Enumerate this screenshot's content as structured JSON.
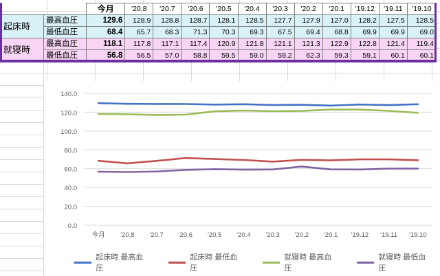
{
  "table": {
    "headers": [
      "今月",
      "'20.8",
      "'20.7",
      "'20.6",
      "'20.5",
      "'20.4",
      "'20.3",
      "'20.2",
      "'20.1",
      "'19.12",
      "'19.11",
      "'19.10"
    ],
    "groups": [
      {
        "label": "起床時",
        "rows": [
          {
            "label": "最高血圧",
            "values": [
              "129.6",
              "128.9",
              "128.8",
              "128.7",
              "128.1",
              "128.5",
              "127.7",
              "127.9",
              "127.0",
              "128.2",
              "127.5",
              "128.5"
            ]
          },
          {
            "label": "最低血圧",
            "values": [
              "68.4",
              "65.7",
              "68.3",
              "71.3",
              "70.3",
              "69.3",
              "67.5",
              "69.4",
              "68.8",
              "69.9",
              "69.9",
              "69.0"
            ]
          }
        ]
      },
      {
        "label": "就寝時",
        "rows": [
          {
            "label": "最高血圧",
            "values": [
              "118.1",
              "117.8",
              "117.1",
              "117.4",
              "120.9",
              "121.8",
              "121.1",
              "121.3",
              "122.9",
              "122.8",
              "121.4",
              "119.4"
            ]
          },
          {
            "label": "最低血圧",
            "values": [
              "56.8",
              "56.5",
              "57.0",
              "58.8",
              "59.5",
              "59.0",
              "59.2",
              "62.3",
              "59.3",
              "59.1",
              "60.1",
              "60.1"
            ]
          }
        ]
      }
    ]
  },
  "chart_data": {
    "type": "line",
    "categories": [
      "今月",
      "'20.8",
      "'20.7",
      "'20.6",
      "'20.5",
      "'20.4",
      "'20.3",
      "'20.2",
      "'20.1",
      "'19.12",
      "'19.11",
      "'19.10"
    ],
    "ylim": [
      0,
      140
    ],
    "yticks": [
      "0.0",
      "20.0",
      "40.0",
      "60.0",
      "80.0",
      "100.0",
      "120.0",
      "140.0"
    ],
    "grid": true,
    "legend_position": "bottom",
    "series": [
      {
        "name": "起床時 最高血圧",
        "color": "#4472c4",
        "values": [
          129.6,
          128.9,
          128.8,
          128.7,
          128.1,
          128.5,
          127.7,
          127.9,
          127.0,
          128.2,
          127.5,
          128.5
        ]
      },
      {
        "name": "起床時 最低血圧",
        "color": "#c0504d",
        "values": [
          68.4,
          65.7,
          68.3,
          71.3,
          70.3,
          69.3,
          67.5,
          69.4,
          68.8,
          69.9,
          69.9,
          69.0
        ]
      },
      {
        "name": "就寝時 最高血圧",
        "color": "#9bbb59",
        "values": [
          118.1,
          117.8,
          117.1,
          117.4,
          120.9,
          121.8,
          121.1,
          121.3,
          122.9,
          122.8,
          121.4,
          119.4
        ]
      },
      {
        "name": "就寝時 最低血圧",
        "color": "#8064a2",
        "values": [
          56.8,
          56.5,
          57.0,
          58.8,
          59.5,
          59.0,
          59.2,
          62.3,
          59.3,
          59.1,
          60.1,
          60.1
        ]
      }
    ]
  }
}
